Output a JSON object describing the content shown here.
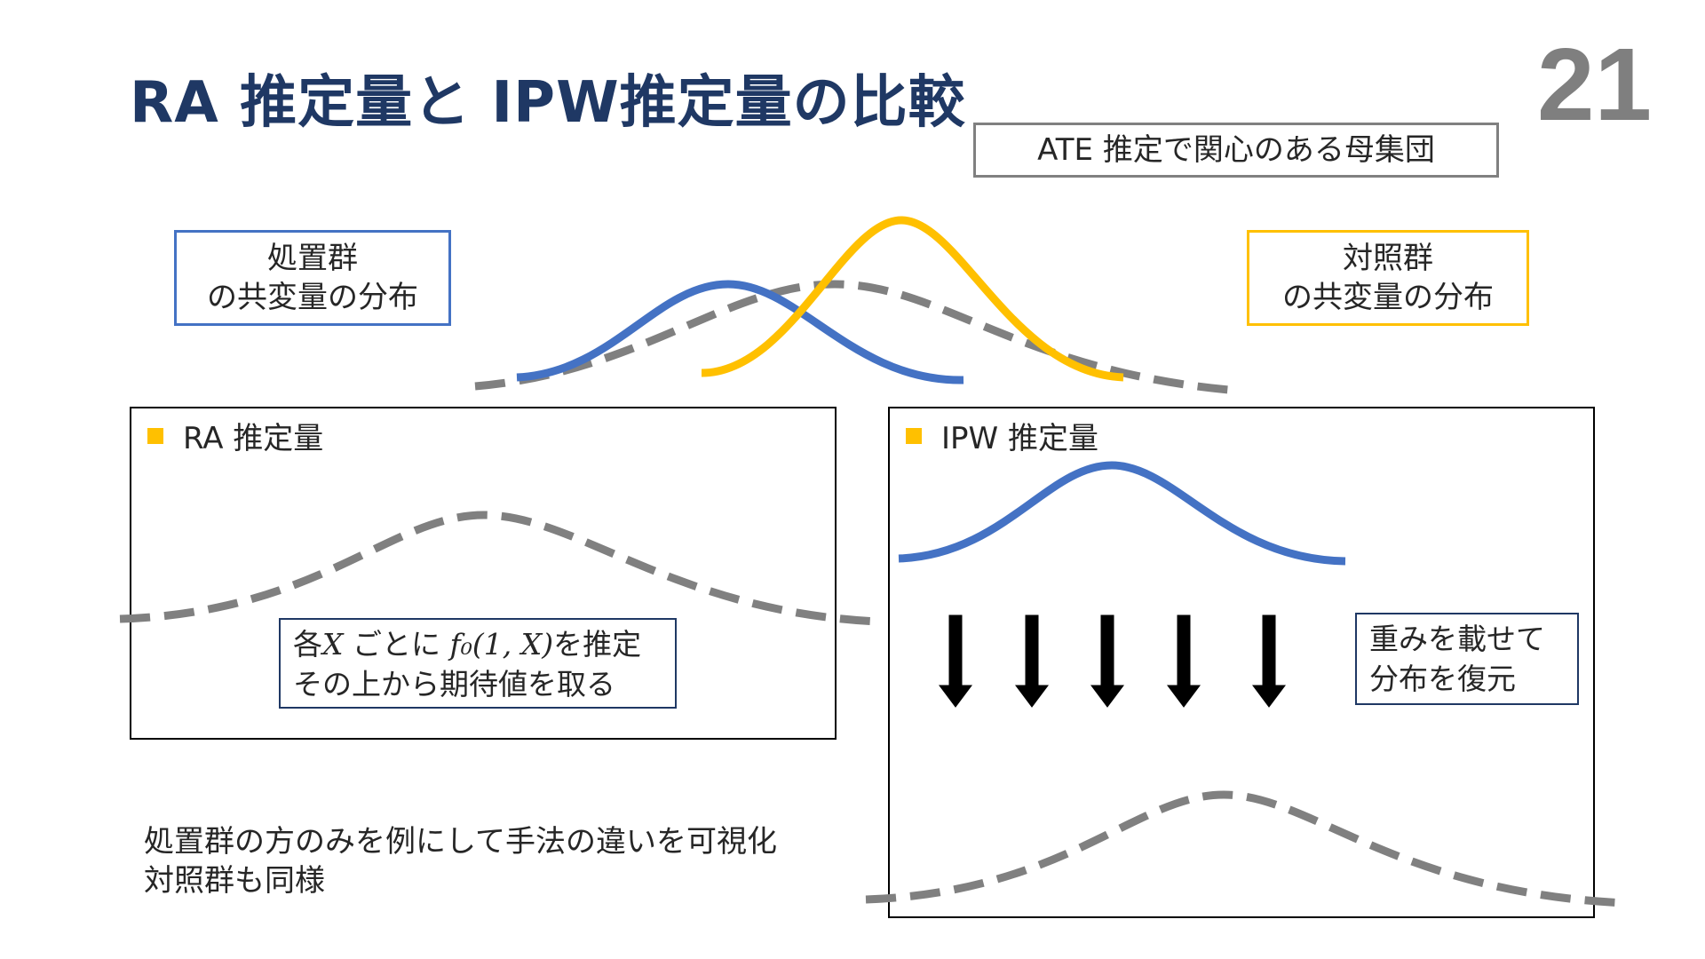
{
  "slide": {
    "title": "RA 推定量と IPW推定量の比較",
    "page_number": "21"
  },
  "labels": {
    "population": "ATE 推定で関心のある母集団",
    "treated_line1": "処置群",
    "treated_line2": "の共変量の分布",
    "control_line1": "対照群",
    "control_line2": "の共変量の分布"
  },
  "ra_panel": {
    "heading": "RA 推定量",
    "note_prefix": "各",
    "note_var": "X",
    "note_mid": " ごとに ",
    "note_formula": "f₀(1, X)",
    "note_suffix": "を推定",
    "note_line2": "その上から期待値を取る"
  },
  "ipw_panel": {
    "heading": "IPW 推定量",
    "note_line1": "重みを載せて",
    "note_line2": "分布を復元"
  },
  "caption": {
    "line1": "処置群の方のみを例にして手法の違いを可視化",
    "line2": "対照群も同様"
  },
  "colors": {
    "title": "#1f3864",
    "treated": "#4472c4",
    "control": "#ffc000",
    "population": "#808080",
    "bullet": "#ffc000"
  }
}
